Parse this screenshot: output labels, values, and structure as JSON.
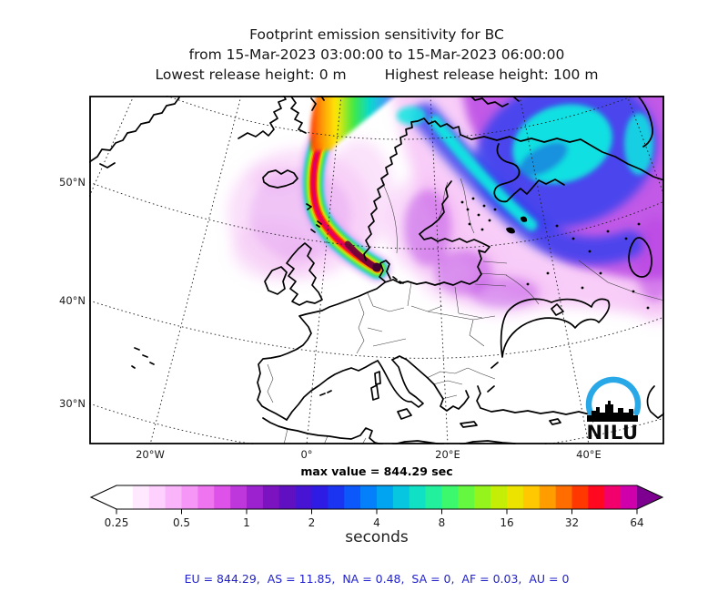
{
  "figure": {
    "title_line1": "Footprint emission sensitivity for BC",
    "title_line2": "from 15-Mar-2023 03:00:00 to 15-Mar-2023 06:00:00",
    "release_low_label": "Lowest release height: 0 m",
    "release_high_label": "Highest release height: 100 m"
  },
  "map": {
    "lat_labels": [
      "50°N",
      "40°N",
      "30°N"
    ],
    "lon_labels": [
      "20°W",
      "0°",
      "20°E",
      "40°E"
    ],
    "max_value_label": "max value = 844.29 sec",
    "logo": {
      "text": "NILU",
      "arc_color": "#29a8e8",
      "skyline_color": "#000000"
    }
  },
  "colorbar": {
    "tick_labels": [
      "0.25",
      "0.5",
      "1",
      "2",
      "4",
      "8",
      "16",
      "32",
      "64"
    ],
    "unit_label": "seconds",
    "segment_colors": [
      "#ffffff",
      "#ffe9ff",
      "#fdd0fd",
      "#fab4fa",
      "#f696f6",
      "#ef74ef",
      "#de52e9",
      "#bd37dd",
      "#9c22cf",
      "#7c13c0",
      "#6010c0",
      "#4614d2",
      "#2e1ce4",
      "#1a34f2",
      "#0c58fa",
      "#0380fa",
      "#01a4f0",
      "#06c6e0",
      "#10e0c4",
      "#22f09c",
      "#3cf86c",
      "#64f840",
      "#94f41c",
      "#c4ee06",
      "#ece400",
      "#ffc800",
      "#ff9c00",
      "#ff6c00",
      "#ff3800",
      "#ff0820",
      "#f2006c",
      "#cf00ab"
    ],
    "left_arrow_color": "#ffffff",
    "right_arrow_color": "#7d0091"
  },
  "footer": {
    "totals_text": "EU = 844.29,  AS = 11.85,  NA = 0.48,  SA = 0,  AF = 0.03,  AU = 0",
    "color": "#2222cc"
  },
  "chart_data": {
    "type": "heatmap",
    "title": "Footprint emission sensitivity for BC",
    "time_from": "15-Mar-2023 03:00:00",
    "time_to": "15-Mar-2023 06:00:00",
    "lowest_release_height_m": 0,
    "highest_release_height_m": 100,
    "units": "seconds",
    "max_value_sec": 844.29,
    "colorbar_scale_sec": [
      0.25,
      0.5,
      1,
      2,
      4,
      8,
      16,
      32,
      64
    ],
    "region_totals_sec": {
      "EU": 844.29,
      "AS": 11.85,
      "NA": 0.48,
      "SA": 0,
      "AF": 0.03,
      "AU": 0
    },
    "lat_ticks_deg_n": [
      50,
      40,
      30
    ],
    "lon_ticks_deg": [
      -20,
      0,
      20,
      40
    ],
    "legend_position": "bottom",
    "grid": "dotted graticule",
    "note": "Plume band of high sensitivity (up to 64+ s) arcs from Denmark northwest past Iceland toward the Arctic; diffuse 0.25-8 s cloud over Scandinavia and northwest Russia."
  }
}
